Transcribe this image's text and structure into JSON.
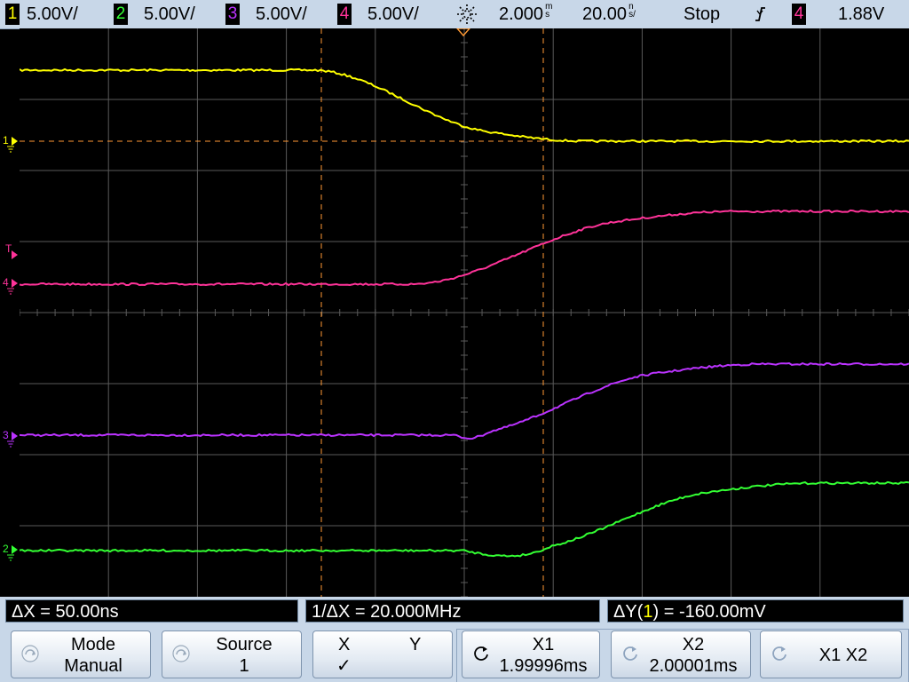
{
  "topbar": {
    "channels": [
      {
        "num": "1",
        "scale": "5.00V/",
        "color": "#ffff00"
      },
      {
        "num": "2",
        "scale": "5.00V/",
        "color": "#33ff33"
      },
      {
        "num": "3",
        "scale": "5.00V/",
        "color": "#bb33ff"
      },
      {
        "num": "4",
        "scale": "5.00V/",
        "color": "#ff3399"
      }
    ],
    "time_position": "2.000",
    "time_position_unit": "m\ns",
    "timebase": "20.00",
    "timebase_unit": "n\ns/",
    "run_state": "Stop",
    "trigger_source": "4",
    "trigger_level": "1.88V",
    "trigger_slope_icon": "falling-edge-icon"
  },
  "markers": {
    "ch1": "1",
    "trigger": "T",
    "ch4": "4",
    "ch3": "3",
    "ch2": "2"
  },
  "measurements": {
    "delta_x": "ΔX = 50.00ns",
    "inv_delta_x": "1/ΔX = 20.000MHz",
    "delta_y_prefix": "ΔY(",
    "delta_y_source": "1",
    "delta_y_suffix": ") = -160.00mV"
  },
  "softkeys": {
    "mode": {
      "line1": "Mode",
      "line2": "Manual"
    },
    "source": {
      "line1": "Source",
      "line2": "1"
    },
    "xy": {
      "x": "X",
      "y": "Y",
      "check": "✓"
    },
    "x1": {
      "line1": "X1",
      "line2": "1.99996ms"
    },
    "x2": {
      "line1": "X2",
      "line2": "2.00001ms"
    },
    "x1x2": {
      "line1": "X1 X2"
    }
  },
  "colors": {
    "ch1": "#ffff00",
    "ch2": "#33ff33",
    "ch3": "#bb33ff",
    "ch4": "#ff3399",
    "cursor": "#ff9933",
    "grid": "#5a5a5a",
    "panel": "#c8d7e8"
  }
}
